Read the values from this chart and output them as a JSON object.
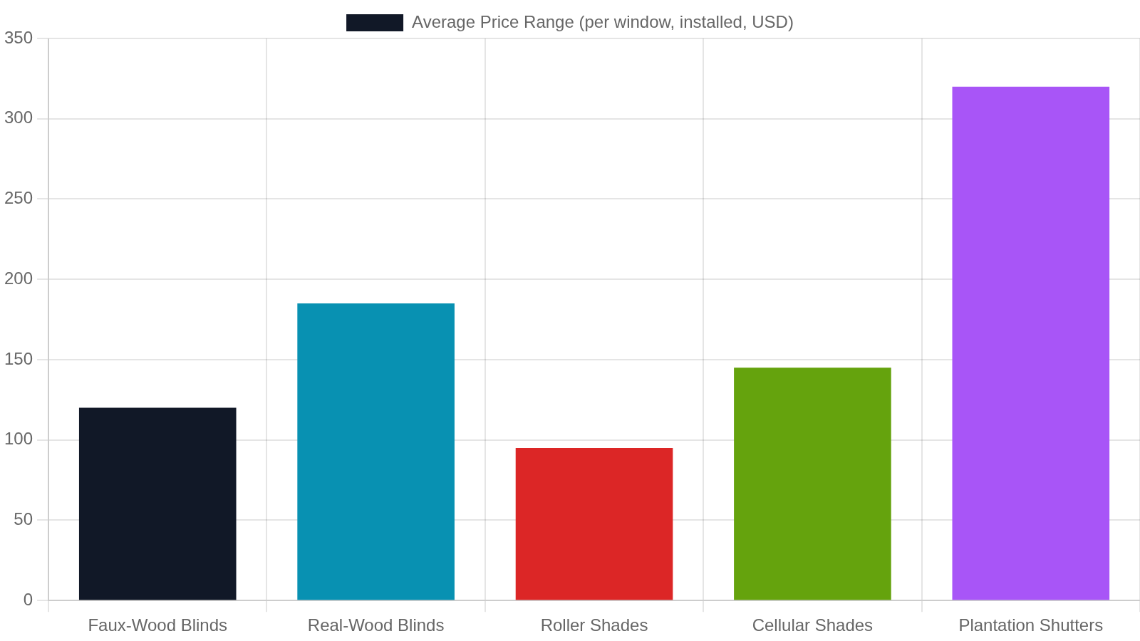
{
  "chart_data": {
    "type": "bar",
    "categories": [
      "Faux-Wood Blinds",
      "Real-Wood Blinds",
      "Roller Shades",
      "Cellular Shades",
      "Plantation Shutters"
    ],
    "series": [
      {
        "name": "Average Price Range (per window, installed, USD)",
        "colors": [
          "#111827",
          "#0891b2",
          "#dc2626",
          "#65a30d",
          "#a855f7"
        ],
        "values": [
          120,
          185,
          95,
          145,
          320
        ]
      }
    ],
    "ylim": [
      0,
      350
    ],
    "yticks": [
      0,
      50,
      100,
      150,
      200,
      250,
      300,
      350
    ],
    "grid": true,
    "legend": "top"
  }
}
